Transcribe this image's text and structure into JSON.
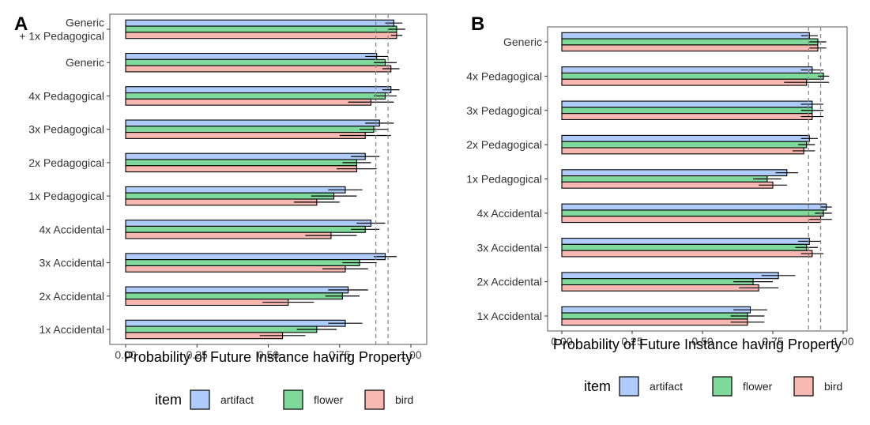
{
  "legend": {
    "title": "item",
    "entries": [
      {
        "label": "artifact",
        "color": "#aecbfa"
      },
      {
        "label": "flower",
        "color": "#7fd99a"
      },
      {
        "label": "bird",
        "color": "#f8b8b2"
      }
    ]
  },
  "chart_data": [
    {
      "panel_label": "A",
      "type": "bar",
      "orientation": "horizontal",
      "xlabel": "Probability of Future Instance having Property",
      "ylabel": "",
      "xlim": [
        0,
        1
      ],
      "xticks": [
        "0.00",
        "0.25",
        "0.50",
        "0.75",
        "1.00"
      ],
      "reference_lines": [
        0.877,
        0.92
      ],
      "categories": [
        "1x Accidental",
        "2x Accidental",
        "3x Accidental",
        "4x Accidental",
        "1x Pedagogical",
        "2x Pedagogical",
        "3x Pedagogical",
        "4x Pedagogical",
        "Generic",
        "Generic\n+ 1x Pedagogical"
      ],
      "series": [
        {
          "name": "artifact",
          "values": [
            0.77,
            0.78,
            0.91,
            0.86,
            0.77,
            0.84,
            0.89,
            0.93,
            0.88,
            0.94
          ],
          "err": [
            0.06,
            0.07,
            0.04,
            0.05,
            0.06,
            0.05,
            0.05,
            0.03,
            0.04,
            0.03
          ]
        },
        {
          "name": "flower",
          "values": [
            0.67,
            0.76,
            0.82,
            0.84,
            0.73,
            0.81,
            0.87,
            0.91,
            0.91,
            0.95
          ],
          "err": [
            0.07,
            0.06,
            0.06,
            0.05,
            0.08,
            0.05,
            0.05,
            0.04,
            0.04,
            0.03
          ]
        },
        {
          "name": "bird",
          "values": [
            0.55,
            0.57,
            0.77,
            0.72,
            0.67,
            0.81,
            0.84,
            0.86,
            0.93,
            0.95
          ],
          "err": [
            0.08,
            0.09,
            0.08,
            0.09,
            0.08,
            0.07,
            0.09,
            0.08,
            0.03,
            0.02
          ]
        }
      ]
    },
    {
      "panel_label": "B",
      "type": "bar",
      "orientation": "horizontal",
      "xlabel": "Probability of Future Instance having Property",
      "ylabel": "",
      "xlim": [
        0,
        1
      ],
      "xticks": [
        "0.00",
        "0.25",
        "0.50",
        "0.75",
        "1.00"
      ],
      "reference_lines": [
        0.877,
        0.92
      ],
      "categories": [
        "1x Accidental",
        "2x Accidental",
        "3x Accidental",
        "4x Accidental",
        "1x Pedagogical",
        "2x Pedagogical",
        "3x Pedagogical",
        "4x Pedagogical",
        "Generic"
      ],
      "series": [
        {
          "name": "artifact",
          "values": [
            0.67,
            0.77,
            0.88,
            0.94,
            0.8,
            0.88,
            0.89,
            0.89,
            0.88
          ],
          "err": [
            0.06,
            0.06,
            0.04,
            0.02,
            0.04,
            0.03,
            0.04,
            0.04,
            0.03
          ]
        },
        {
          "name": "flower",
          "values": [
            0.66,
            0.68,
            0.87,
            0.93,
            0.73,
            0.87,
            0.89,
            0.93,
            0.91
          ],
          "err": [
            0.06,
            0.07,
            0.04,
            0.03,
            0.05,
            0.03,
            0.04,
            0.02,
            0.03
          ]
        },
        {
          "name": "bird",
          "values": [
            0.66,
            0.7,
            0.89,
            0.92,
            0.75,
            0.86,
            0.89,
            0.87,
            0.91
          ],
          "err": [
            0.06,
            0.07,
            0.04,
            0.04,
            0.05,
            0.04,
            0.04,
            0.08,
            0.03
          ]
        }
      ]
    }
  ]
}
